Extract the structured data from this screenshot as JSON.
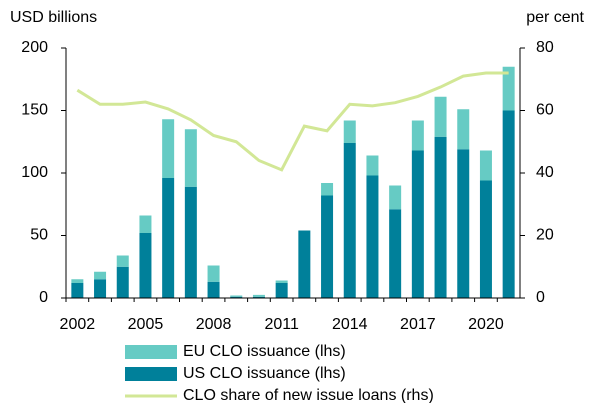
{
  "chart_data": {
    "type": "bar",
    "y_label": "USD billions",
    "y2_label": "per cent",
    "categories": [
      "2002",
      null,
      null,
      "2005",
      null,
      null,
      "2008",
      null,
      null,
      "2011",
      null,
      null,
      "2014",
      null,
      null,
      "2017",
      null,
      null,
      "2020",
      null
    ],
    "series": [
      {
        "name": "EU CLO issuance (lhs)",
        "color": "#66cbc4",
        "type": "bar",
        "values": [
          3,
          6,
          9,
          14,
          47,
          46,
          13,
          1,
          1.5,
          2,
          0,
          10,
          18,
          16,
          19,
          24,
          32,
          32,
          24,
          35
        ]
      },
      {
        "name": "US CLO issuance (lhs)",
        "color": "#00809a",
        "type": "bar",
        "values": [
          12,
          15,
          25,
          52,
          96,
          89,
          13,
          1,
          1,
          12,
          54,
          82,
          124,
          98,
          71,
          118,
          129,
          119,
          94,
          150
        ]
      },
      {
        "name": "CLO share of new issue loans (rhs)",
        "color": "#d2e796",
        "type": "line",
        "axis": "y2",
        "values": [
          66.5,
          62,
          62,
          62.7,
          60.5,
          57,
          52,
          50,
          44,
          41,
          55,
          53.5,
          62,
          61.5,
          62.5,
          64.5,
          67.5,
          71,
          72,
          72
        ]
      }
    ],
    "ylim": [
      0,
      200
    ],
    "yticks": [
      0,
      50,
      100,
      150,
      200
    ],
    "y2lim": [
      0,
      80
    ],
    "y2ticks": [
      0,
      20,
      40,
      60,
      80
    ]
  }
}
